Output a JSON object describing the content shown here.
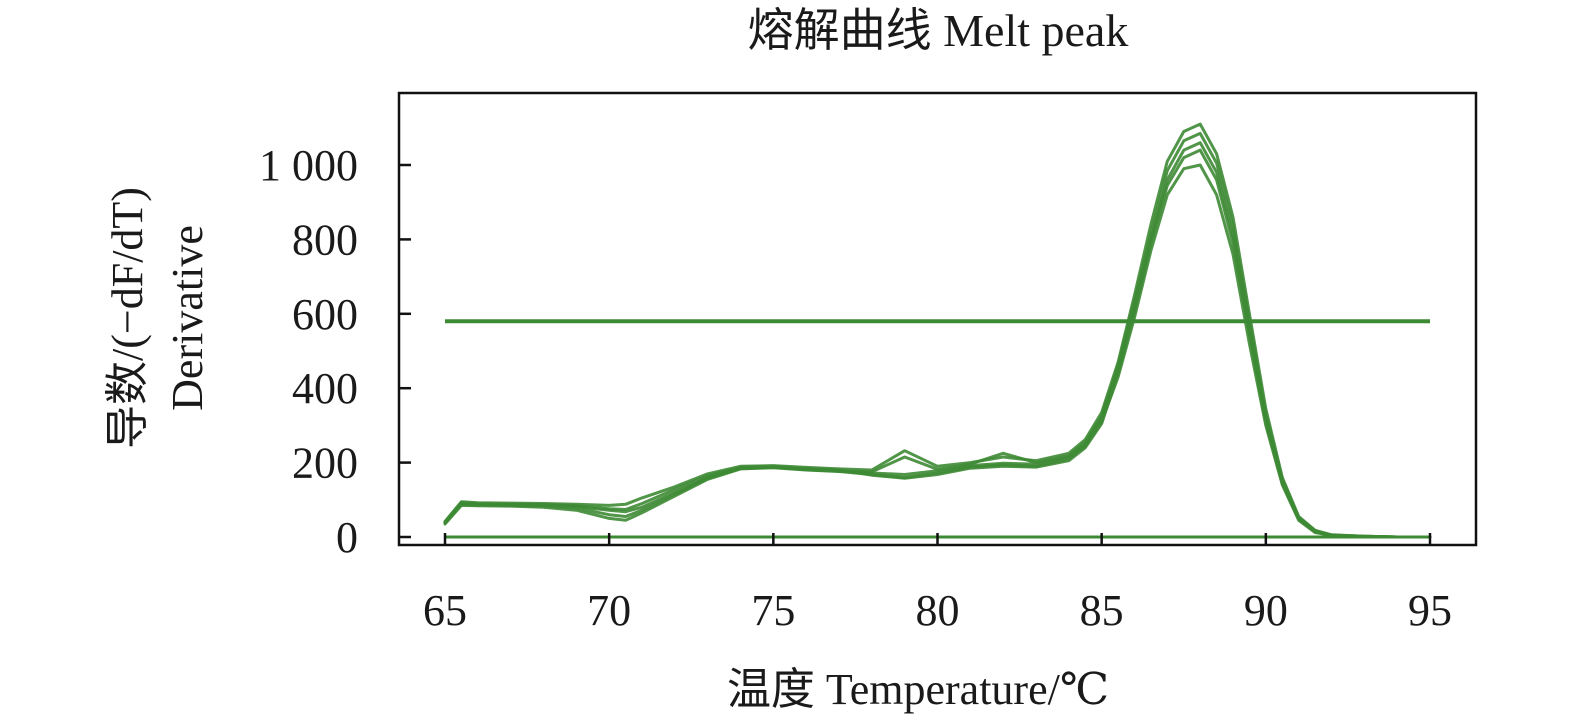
{
  "chart_data": {
    "type": "line",
    "title": "熔解曲线 Melt peak",
    "xlabel": "温度 Temperature/℃",
    "ylabel_line1": "导数/(−dF/dT)",
    "ylabel_line2": "Derivative",
    "xlim": [
      65,
      95
    ],
    "ylim": [
      0,
      1000
    ],
    "x_ticks": [
      "65",
      "70",
      "75",
      "80",
      "85",
      "90",
      "95"
    ],
    "y_ticks": [
      "0",
      "200",
      "400",
      "600",
      "800",
      "1 000"
    ],
    "grid": false,
    "legend": "none",
    "series_color": "#3d8a34",
    "threshold": 580,
    "x": [
      65.0,
      65.5,
      66.0,
      67.0,
      68.0,
      69.0,
      70.0,
      70.5,
      71.0,
      72.0,
      73.0,
      74.0,
      75.0,
      76.0,
      77.0,
      78.0,
      79.0,
      80.0,
      81.0,
      82.0,
      83.0,
      84.0,
      84.5,
      85.0,
      85.5,
      86.0,
      86.5,
      87.0,
      87.5,
      88.0,
      88.5,
      89.0,
      89.5,
      90.0,
      90.5,
      91.0,
      91.5,
      92.0,
      93.0,
      94.0,
      95.0
    ],
    "series": [
      {
        "values": [
          40,
          90,
          88,
          87,
          86,
          82,
          72,
          68,
          80,
          120,
          160,
          185,
          188,
          182,
          178,
          172,
          168,
          178,
          192,
          198,
          196,
          215,
          250,
          320,
          450,
          620,
          800,
          960,
          1040,
          1060,
          980,
          810,
          560,
          320,
          150,
          50,
          15,
          5,
          2,
          0,
          0
        ]
      },
      {
        "values": [
          35,
          85,
          84,
          83,
          80,
          72,
          50,
          45,
          65,
          110,
          155,
          183,
          186,
          180,
          176,
          168,
          160,
          172,
          188,
          194,
          190,
          210,
          245,
          310,
          430,
          590,
          770,
          920,
          990,
          1000,
          920,
          760,
          520,
          300,
          140,
          45,
          12,
          4,
          1,
          0,
          0
        ]
      },
      {
        "values": [
          42,
          95,
          92,
          91,
          90,
          88,
          85,
          88,
          105,
          135,
          170,
          190,
          192,
          187,
          183,
          180,
          232,
          190,
          200,
          215,
          205,
          225,
          262,
          335,
          470,
          650,
          840,
          1010,
          1090,
          1110,
          1030,
          860,
          600,
          345,
          160,
          55,
          18,
          6,
          2,
          0,
          0
        ]
      },
      {
        "values": [
          38,
          88,
          86,
          85,
          84,
          78,
          60,
          55,
          72,
          115,
          158,
          184,
          187,
          181,
          177,
          175,
          215,
          182,
          196,
          225,
          200,
          218,
          255,
          325,
          460,
          635,
          815,
          985,
          1065,
          1085,
          1005,
          835,
          580,
          330,
          155,
          52,
          16,
          5,
          2,
          0,
          0
        ]
      },
      {
        "values": [
          40,
          92,
          89,
          88,
          87,
          84,
          76,
          74,
          90,
          128,
          165,
          187,
          189,
          184,
          180,
          166,
          158,
          168,
          185,
          190,
          188,
          205,
          240,
          305,
          440,
          605,
          790,
          945,
          1020,
          1040,
          960,
          790,
          545,
          310,
          145,
          48,
          14,
          4,
          1,
          0,
          0
        ]
      }
    ]
  }
}
